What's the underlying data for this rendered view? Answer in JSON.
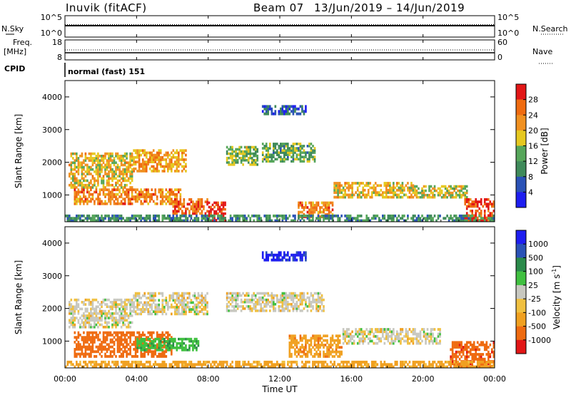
{
  "header": {
    "station": "Inuvik (fitACF)",
    "beam": "Beam 07",
    "dates": "13/Jun/2019 – 14/Jun/2019"
  },
  "top_panels": {
    "nsky_label": "N.Sky",
    "nsearch_label": "N.Search",
    "nsky_ticks": [
      "10^5",
      "10^0"
    ],
    "nsearch_ticks": [
      "10^5",
      "10^0"
    ],
    "freq_label": "Freq.",
    "freq_unit": "[MHz]",
    "freq_ticks": [
      "18",
      "8"
    ],
    "nave_label": "Nave",
    "nave_ticks": [
      "60",
      "0"
    ],
    "cpid_label": "CPID",
    "cpid_text": "normal (fast) 151"
  },
  "x_axis": {
    "label": "Time UT",
    "ticks": [
      "00:00",
      "04:00",
      "08:00",
      "12:00",
      "16:00",
      "20:00",
      "00:00"
    ]
  },
  "colors": {
    "power": [
      "#1e1ef0",
      "#2a52b6",
      "#3f8a5a",
      "#56a65a",
      "#e6c820",
      "#f09020",
      "#ef6b10",
      "#e21616"
    ],
    "velocity": [
      "#e21616",
      "#ef6b10",
      "#f0a020",
      "#f0c040",
      "#c8c8c0",
      "#40c040",
      "#2a8a4a",
      "#2a52b6",
      "#1e1ef0"
    ]
  },
  "chart_data": [
    {
      "type": "heatmap",
      "ylabel": "Slant Range [km]",
      "xlabel": "",
      "ylim": [
        180,
        4500
      ],
      "yticks": [
        1000,
        2000,
        3000,
        4000
      ],
      "xlim": [
        0,
        24
      ],
      "colorbar": {
        "label": "Power [dB]",
        "ticks": [
          "28",
          "24",
          "20",
          "16",
          "12",
          "8",
          "4"
        ],
        "range": [
          0,
          30
        ]
      },
      "regions": [
        {
          "t": [
            0.2,
            3.8
          ],
          "r": [
            1200,
            2300
          ],
          "p": 18
        },
        {
          "t": [
            3.8,
            6.8
          ],
          "r": [
            1700,
            2400
          ],
          "p": 20
        },
        {
          "t": [
            0.5,
            6.5
          ],
          "r": [
            700,
            1200
          ],
          "p": 22
        },
        {
          "t": [
            6.0,
            8.0
          ],
          "r": [
            400,
            900
          ],
          "p": 24
        },
        {
          "t": [
            8.0,
            9.0
          ],
          "r": [
            200,
            800
          ],
          "p": 28
        },
        {
          "t": [
            9.0,
            10.8
          ],
          "r": [
            1900,
            2500
          ],
          "p": 14
        },
        {
          "t": [
            11.0,
            14.0
          ],
          "r": [
            2000,
            2600
          ],
          "p": 12
        },
        {
          "t": [
            11.0,
            13.5
          ],
          "r": [
            3450,
            3750
          ],
          "p": 6
        },
        {
          "t": [
            13.0,
            15.0
          ],
          "r": [
            300,
            800
          ],
          "p": 22
        },
        {
          "t": [
            15.0,
            19.5
          ],
          "r": [
            900,
            1400
          ],
          "p": 18
        },
        {
          "t": [
            19.5,
            22.5
          ],
          "r": [
            900,
            1300
          ],
          "p": 16
        },
        {
          "t": [
            22.3,
            24.0
          ],
          "r": [
            200,
            900
          ],
          "p": 26
        },
        {
          "t": [
            0.0,
            24.0
          ],
          "r": [
            180,
            400
          ],
          "p": 10
        }
      ]
    },
    {
      "type": "heatmap",
      "ylabel": "Slant Range [km]",
      "xlabel": "Time UT",
      "ylim": [
        180,
        4500
      ],
      "yticks": [
        1000,
        2000,
        3000,
        4000
      ],
      "xlim": [
        0,
        24
      ],
      "colorbar": {
        "label": "Velocity [m s^-1]",
        "ticks": [
          "1000",
          "500",
          "100",
          "25",
          "-25",
          "-100",
          "-500",
          "-1000"
        ],
        "range": [
          -1200,
          1200
        ]
      },
      "regions": [
        {
          "t": [
            0.2,
            3.8
          ],
          "r": [
            1400,
            2300
          ],
          "v": 0
        },
        {
          "t": [
            3.8,
            8.0
          ],
          "r": [
            1800,
            2500
          ],
          "v": 0
        },
        {
          "t": [
            0.5,
            6.0
          ],
          "r": [
            500,
            1300
          ],
          "v": -150
        },
        {
          "t": [
            4.0,
            7.5
          ],
          "r": [
            700,
            1100
          ],
          "v": 80
        },
        {
          "t": [
            9.0,
            14.5
          ],
          "r": [
            1900,
            2500
          ],
          "v": 0
        },
        {
          "t": [
            11.0,
            13.5
          ],
          "r": [
            3450,
            3750
          ],
          "v": 600
        },
        {
          "t": [
            12.5,
            15.5
          ],
          "r": [
            500,
            1200
          ],
          "v": -80
        },
        {
          "t": [
            15.5,
            21.0
          ],
          "r": [
            900,
            1400
          ],
          "v": 0
        },
        {
          "t": [
            21.5,
            24.0
          ],
          "r": [
            200,
            1000
          ],
          "v": -400
        },
        {
          "t": [
            0.0,
            24.0
          ],
          "r": [
            180,
            400
          ],
          "v": -50
        }
      ]
    }
  ]
}
